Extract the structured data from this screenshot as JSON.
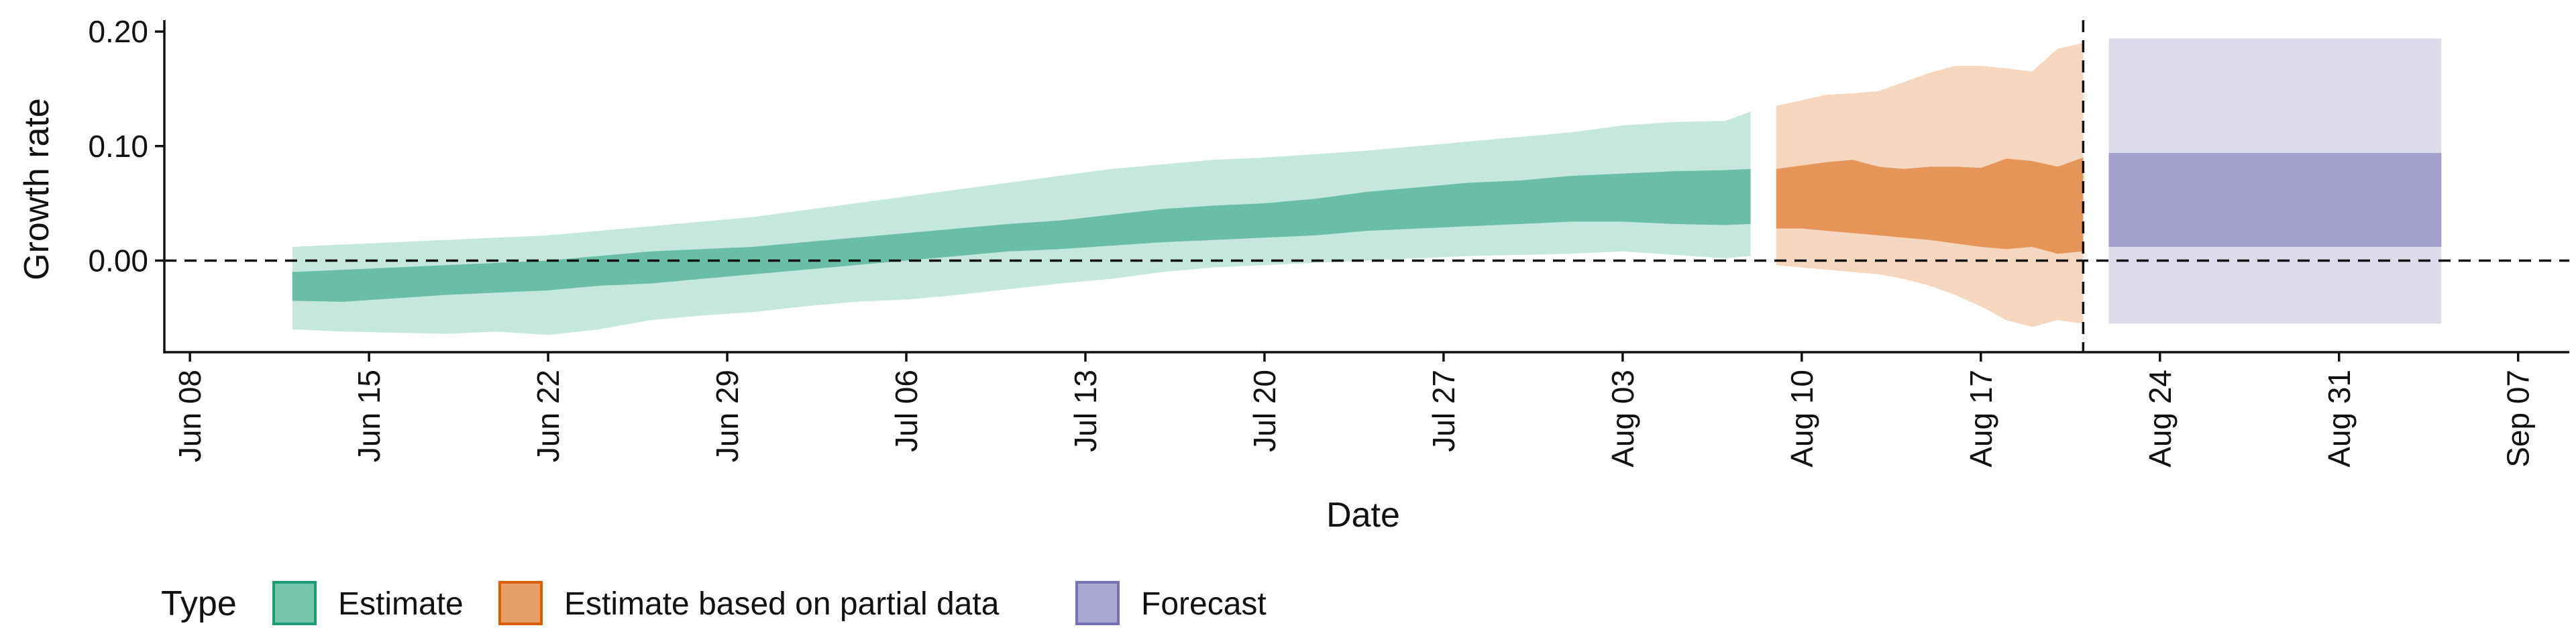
{
  "chart_data": {
    "type": "area",
    "xlabel": "Date",
    "ylabel": "Growth rate",
    "x_range": [
      "2020-06-07",
      "2020-09-09"
    ],
    "ylim": [
      -0.08,
      0.21
    ],
    "y_ticks": [
      0.0,
      0.1,
      0.2
    ],
    "y_tick_labels": [
      "0.00",
      "0.10",
      "0.20"
    ],
    "x_ticks": [
      "2020-06-08",
      "2020-06-15",
      "2020-06-22",
      "2020-06-29",
      "2020-07-06",
      "2020-07-13",
      "2020-07-20",
      "2020-07-27",
      "2020-08-03",
      "2020-08-10",
      "2020-08-17",
      "2020-08-24",
      "2020-08-31",
      "2020-09-07"
    ],
    "x_tick_labels": [
      "Jun 08",
      "Jun 15",
      "Jun 22",
      "Jun 29",
      "Jul 06",
      "Jul 13",
      "Jul 20",
      "Jul 27",
      "Aug 03",
      "Aug 10",
      "Aug 17",
      "Aug 24",
      "Aug 31",
      "Sep 07"
    ],
    "reference_lines": {
      "horizontal_y": 0.0,
      "vertical_x": "2020-08-21"
    },
    "grid": false,
    "legend": {
      "title": "Type",
      "position": "bottom-left",
      "entries": [
        {
          "label": "Estimate",
          "color": "#1b9e77"
        },
        {
          "label": "Estimate based on partial data",
          "color": "#d95f02"
        },
        {
          "label": "Forecast",
          "color": "#7570b3"
        }
      ]
    },
    "series": [
      {
        "name": "Estimate",
        "color": "#1b9e77",
        "x": [
          "2020-06-12",
          "2020-06-14",
          "2020-06-16",
          "2020-06-18",
          "2020-06-20",
          "2020-06-22",
          "2020-06-24",
          "2020-06-26",
          "2020-06-28",
          "2020-06-30",
          "2020-07-02",
          "2020-07-04",
          "2020-07-06",
          "2020-07-08",
          "2020-07-10",
          "2020-07-12",
          "2020-07-14",
          "2020-07-16",
          "2020-07-18",
          "2020-07-20",
          "2020-07-22",
          "2020-07-24",
          "2020-07-26",
          "2020-07-28",
          "2020-07-30",
          "2020-08-01",
          "2020-08-03",
          "2020-08-05",
          "2020-08-07",
          "2020-08-08"
        ],
        "outer_lower": [
          -0.06,
          -0.062,
          -0.063,
          -0.064,
          -0.062,
          -0.065,
          -0.06,
          -0.052,
          -0.048,
          -0.045,
          -0.04,
          -0.036,
          -0.034,
          -0.03,
          -0.025,
          -0.02,
          -0.016,
          -0.01,
          -0.006,
          -0.004,
          -0.002,
          0.0,
          0.002,
          0.004,
          0.005,
          0.006,
          0.008,
          0.005,
          0.002,
          0.004
        ],
        "inner_lower": [
          -0.035,
          -0.036,
          -0.033,
          -0.03,
          -0.028,
          -0.026,
          -0.022,
          -0.02,
          -0.016,
          -0.012,
          -0.008,
          -0.004,
          0.0,
          0.004,
          0.008,
          0.01,
          0.013,
          0.016,
          0.018,
          0.02,
          0.022,
          0.026,
          0.028,
          0.03,
          0.032,
          0.034,
          0.034,
          0.032,
          0.031,
          0.032
        ],
        "inner_upper": [
          -0.01,
          -0.008,
          -0.006,
          -0.004,
          -0.002,
          0.0,
          0.004,
          0.008,
          0.01,
          0.012,
          0.016,
          0.02,
          0.024,
          0.028,
          0.032,
          0.035,
          0.04,
          0.045,
          0.048,
          0.05,
          0.054,
          0.06,
          0.064,
          0.068,
          0.07,
          0.074,
          0.076,
          0.078,
          0.079,
          0.08
        ],
        "outer_upper": [
          0.012,
          0.014,
          0.016,
          0.018,
          0.02,
          0.022,
          0.026,
          0.03,
          0.034,
          0.038,
          0.044,
          0.05,
          0.056,
          0.062,
          0.068,
          0.074,
          0.08,
          0.084,
          0.088,
          0.09,
          0.093,
          0.096,
          0.1,
          0.104,
          0.108,
          0.112,
          0.118,
          0.121,
          0.122,
          0.13
        ]
      },
      {
        "name": "Estimate based on partial data",
        "color": "#d95f02",
        "x": [
          "2020-08-09",
          "2020-08-10",
          "2020-08-11",
          "2020-08-12",
          "2020-08-13",
          "2020-08-14",
          "2020-08-15",
          "2020-08-16",
          "2020-08-17",
          "2020-08-18",
          "2020-08-19",
          "2020-08-20",
          "2020-08-21"
        ],
        "outer_lower": [
          -0.004,
          -0.006,
          -0.008,
          -0.01,
          -0.012,
          -0.016,
          -0.022,
          -0.03,
          -0.04,
          -0.052,
          -0.058,
          -0.052,
          -0.055
        ],
        "inner_lower": [
          0.028,
          0.028,
          0.026,
          0.024,
          0.022,
          0.02,
          0.018,
          0.015,
          0.012,
          0.01,
          0.012,
          0.006,
          0.008
        ],
        "inner_upper": [
          0.08,
          0.083,
          0.086,
          0.088,
          0.082,
          0.08,
          0.082,
          0.082,
          0.081,
          0.089,
          0.087,
          0.082,
          0.09
        ],
        "outer_upper": [
          0.135,
          0.14,
          0.145,
          0.146,
          0.148,
          0.156,
          0.164,
          0.17,
          0.17,
          0.168,
          0.165,
          0.185,
          0.19
        ]
      },
      {
        "name": "Forecast",
        "color": "#7570b3",
        "x": [
          "2020-08-22",
          "2020-09-04"
        ],
        "outer_lower": [
          -0.055,
          -0.055
        ],
        "inner_lower": [
          0.012,
          0.012
        ],
        "inner_upper": [
          0.094,
          0.094
        ],
        "outer_upper": [
          0.194,
          0.194
        ]
      }
    ]
  }
}
